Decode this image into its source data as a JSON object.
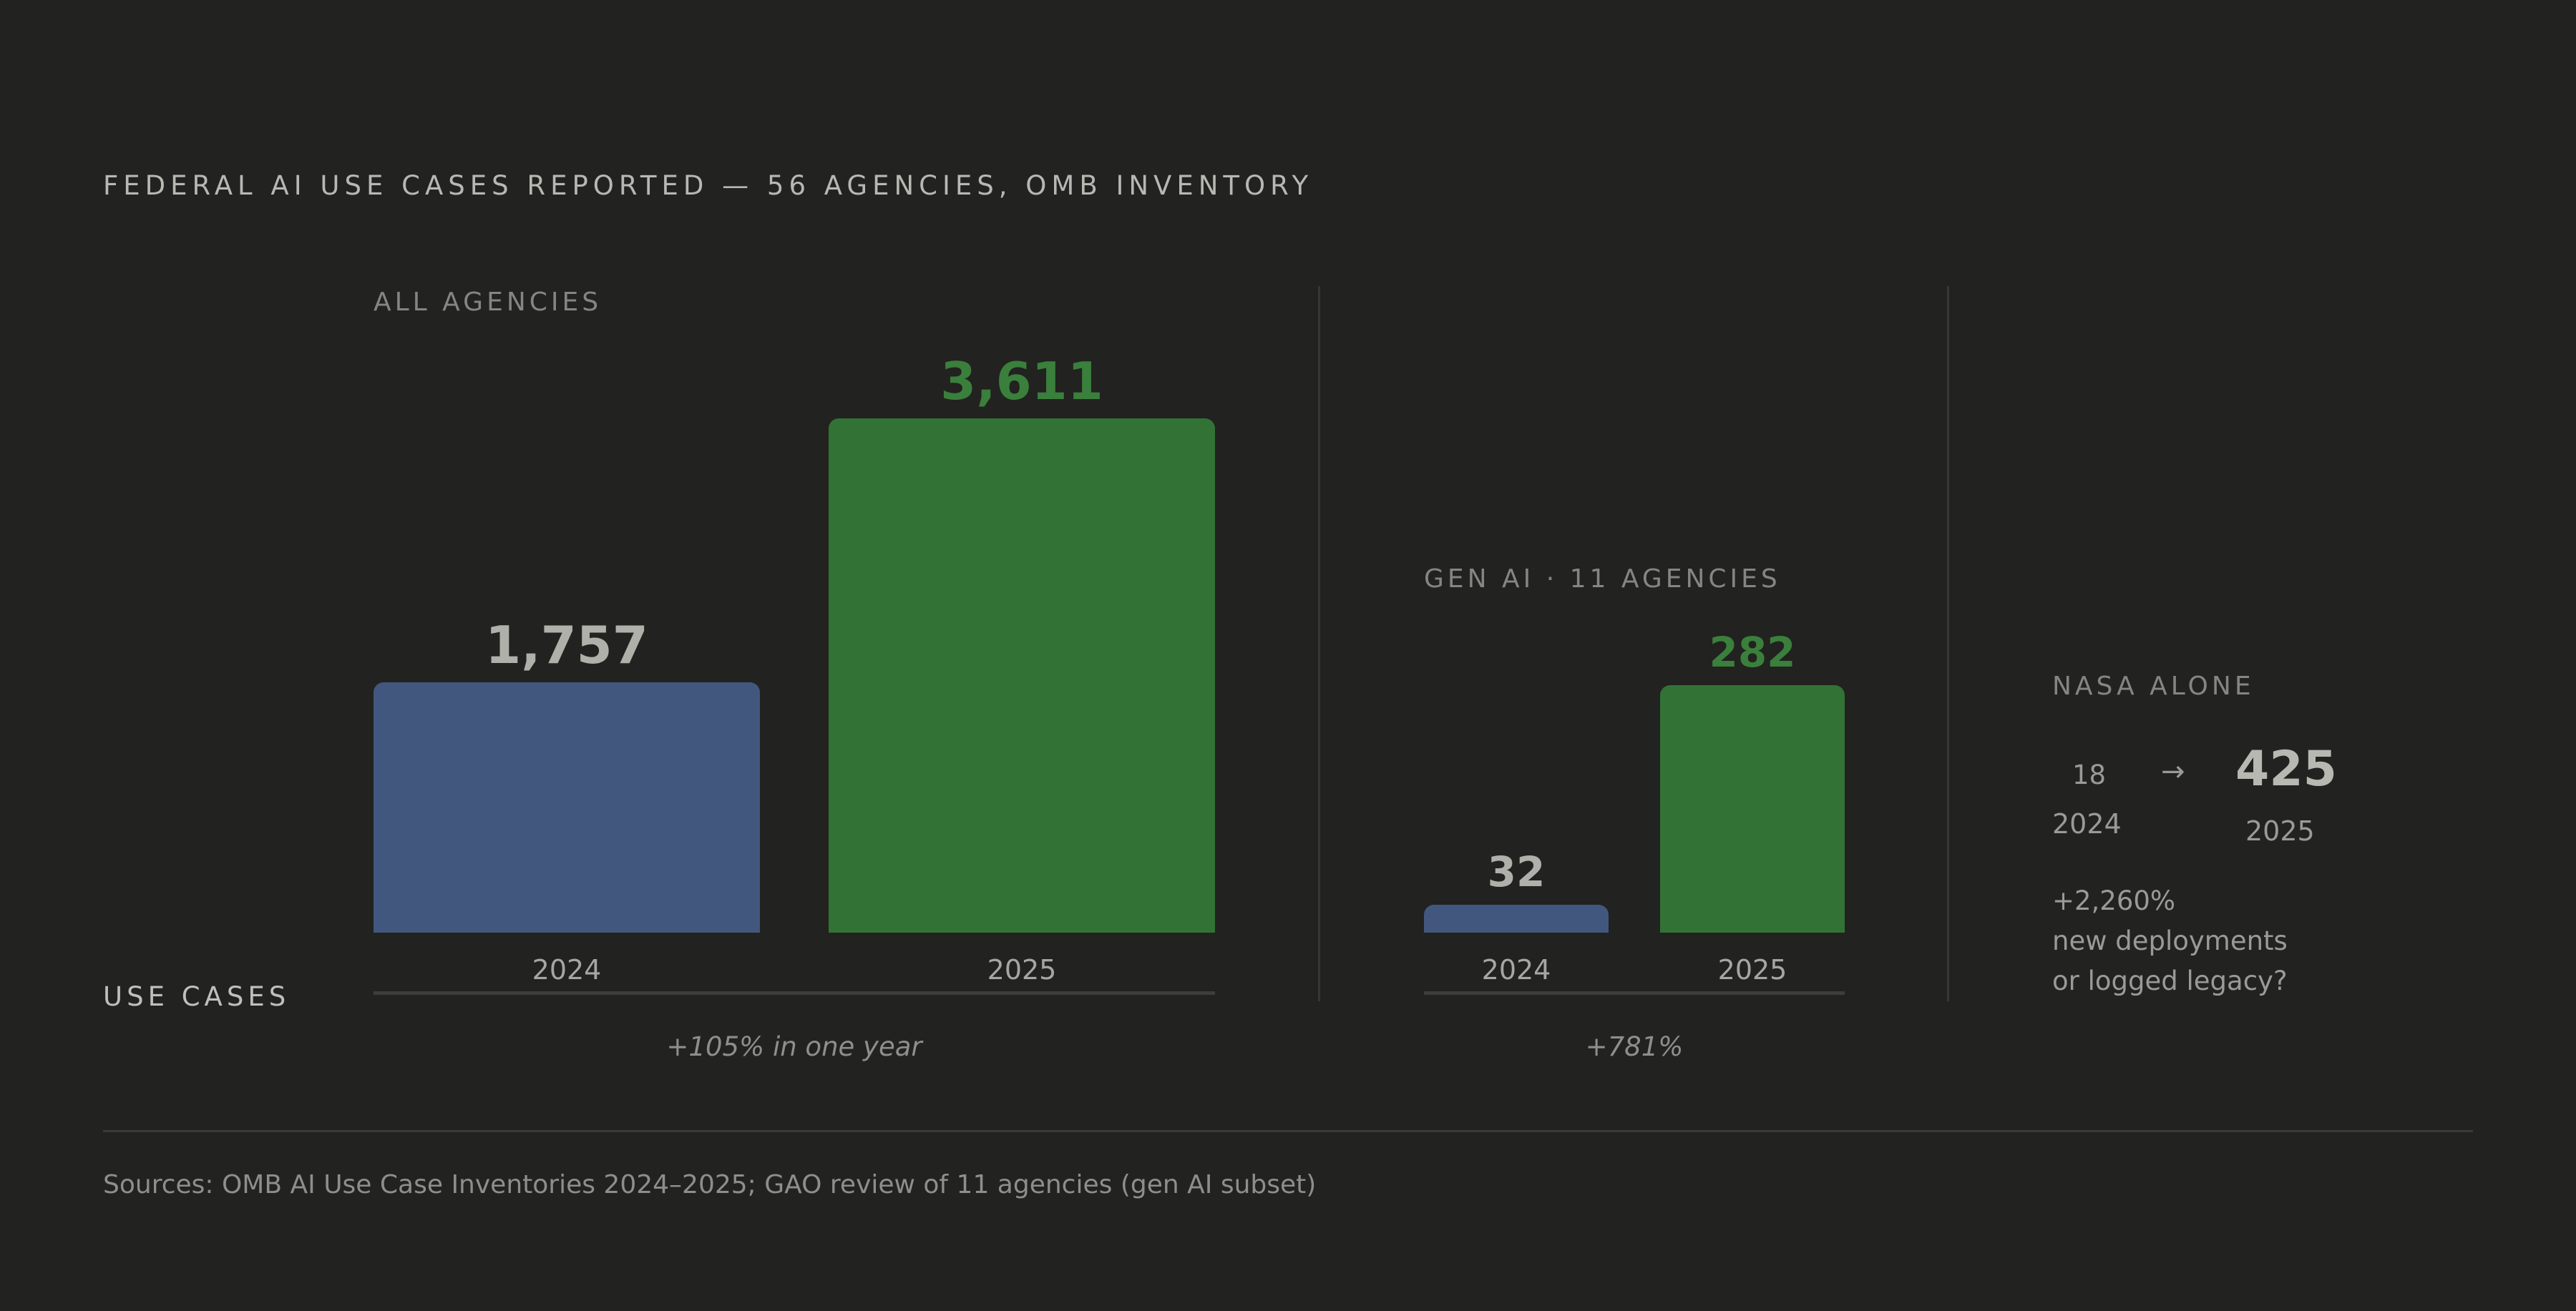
{
  "title": "FEDERAL AI USE CASES REPORTED — 56 AGENCIES, OMB INVENTORY",
  "y_label": "USE CASES",
  "colors": {
    "background": "#222220",
    "bar_2024": "#42577e",
    "bar_2025": "#337235",
    "value_2024": "#b0b0ab",
    "value_2025": "#3a7f3c"
  },
  "chart_data": [
    {
      "type": "bar",
      "title": "ALL AGENCIES",
      "categories": [
        "2024",
        "2025"
      ],
      "values": [
        1757,
        3611
      ],
      "value_labels": [
        "1,757",
        "3,611"
      ],
      "note": "+105% in one year",
      "ylim": [
        0,
        3611
      ]
    },
    {
      "type": "bar",
      "title": "GEN AI · 11 AGENCIES",
      "categories": [
        "2024",
        "2025"
      ],
      "values": [
        32,
        282
      ],
      "value_labels": [
        "32",
        "282"
      ],
      "note": "+781%",
      "ylim": [
        0,
        282
      ]
    }
  ],
  "nasa": {
    "label": "NASA ALONE",
    "from_value": "18",
    "arrow": "→",
    "to_value": "425",
    "from_year": "2024",
    "to_year": "2025",
    "change": "+2,260%",
    "note_line1": "new deployments",
    "note_line2": "or logged legacy?"
  },
  "source": "Sources: OMB AI Use Case Inventories 2024–2025; GAO review of 11 agencies (gen AI subset)"
}
